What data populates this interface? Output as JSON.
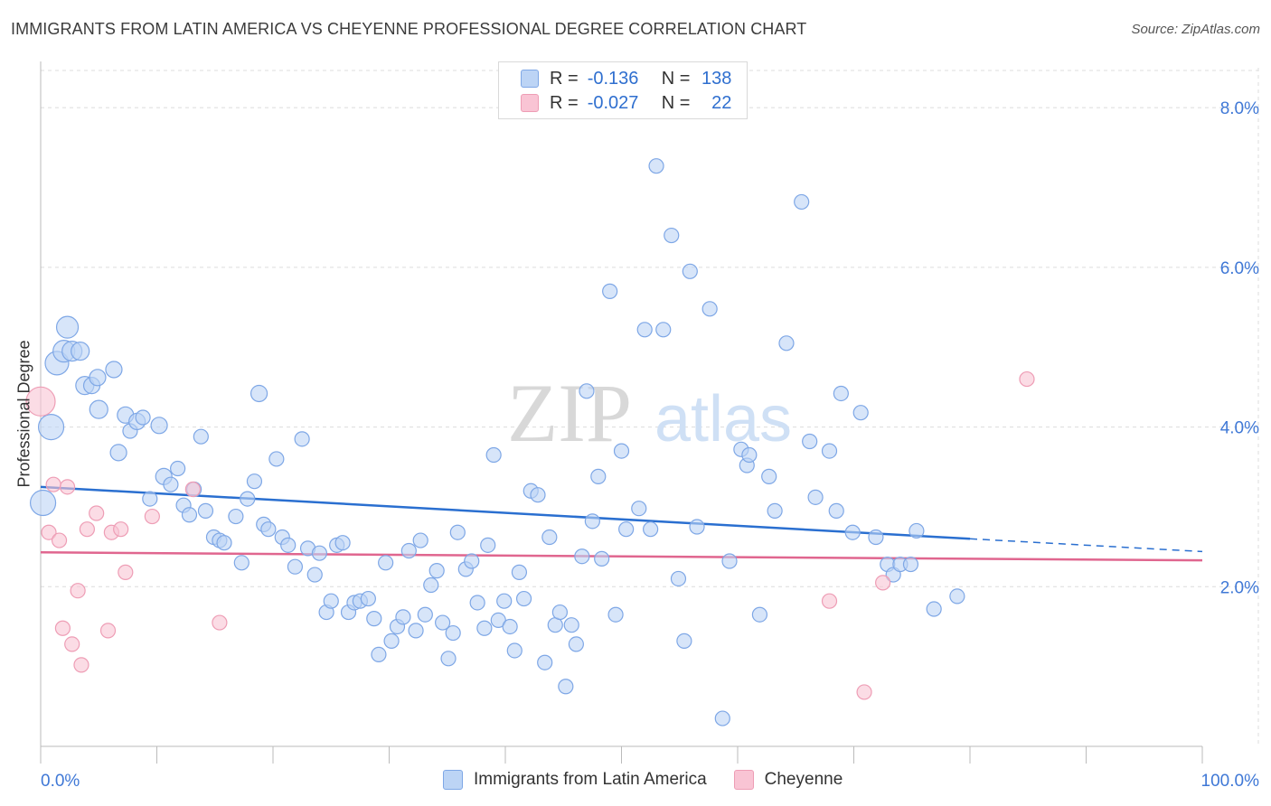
{
  "header": {
    "title": "IMMIGRANTS FROM LATIN AMERICA VS CHEYENNE PROFESSIONAL DEGREE CORRELATION CHART",
    "source": "Source: ZipAtlas.com"
  },
  "watermark": {
    "zip": "ZIP",
    "atlas": "atlas"
  },
  "legend": {
    "r_label": "R =",
    "n_label": "N =",
    "rows": [
      {
        "name": "blue",
        "r": "-0.136",
        "n": "138"
      },
      {
        "name": "pink",
        "r": "-0.027",
        "n": "22"
      }
    ]
  },
  "colors": {
    "blue_fill": "#bcd4f5",
    "blue_stroke": "#7ea7e6",
    "blue_line": "#2a6fd0",
    "pink_fill": "#f9c4d4",
    "pink_stroke": "#ee9db5",
    "pink_line": "#e0668f",
    "axis_label": "#3f78d6",
    "grid": "#dcdcdc"
  },
  "chart_data": {
    "type": "scatter",
    "title": "IMMIGRANTS FROM LATIN AMERICA VS CHEYENNE PROFESSIONAL DEGREE CORRELATION CHART",
    "xlabel": "",
    "ylabel": "Professional Degree",
    "xlim": [
      0,
      100
    ],
    "ylim": [
      0,
      8.5
    ],
    "x_tick_labels": [
      "0.0%",
      "100.0%"
    ],
    "y_ticks": [
      2,
      4,
      6,
      8
    ],
    "y_tick_labels": [
      "2.0%",
      "4.0%",
      "6.0%",
      "8.0%"
    ],
    "grid": true,
    "legend_position": "top-center",
    "series": [
      {
        "name": "Immigrants from Latin America",
        "r": -0.136,
        "n": 138,
        "trend": {
          "x0": 0,
          "y0": 3.25,
          "x1": 80,
          "y1": 2.6,
          "dash_to_x": 100,
          "dash_to_y": 2.44
        },
        "points": [
          [
            0.2,
            3.05,
            14
          ],
          [
            0.9,
            4.0,
            14
          ],
          [
            1.4,
            4.8,
            13
          ],
          [
            2.3,
            5.25,
            12
          ],
          [
            2.0,
            4.95,
            12
          ],
          [
            2.7,
            4.95,
            11
          ],
          [
            3.4,
            4.95,
            10
          ],
          [
            3.8,
            4.52,
            10
          ],
          [
            4.4,
            4.52,
            9
          ],
          [
            4.9,
            4.62,
            9
          ],
          [
            5.0,
            4.22,
            10
          ],
          [
            6.3,
            4.72,
            9
          ],
          [
            6.7,
            3.68,
            9
          ],
          [
            7.3,
            4.15,
            9
          ],
          [
            7.7,
            3.95,
            8
          ],
          [
            8.3,
            4.07,
            9
          ],
          [
            8.8,
            4.12,
            8
          ],
          [
            9.4,
            3.1,
            8
          ],
          [
            10.2,
            4.02,
            9
          ],
          [
            10.6,
            3.38,
            9
          ],
          [
            11.2,
            3.28,
            8
          ],
          [
            11.8,
            3.48,
            8
          ],
          [
            12.3,
            3.02,
            8
          ],
          [
            12.8,
            2.9,
            8
          ],
          [
            13.2,
            3.22,
            8
          ],
          [
            13.8,
            3.88,
            8
          ],
          [
            14.2,
            2.95,
            8
          ],
          [
            14.9,
            2.62,
            8
          ],
          [
            15.4,
            2.58,
            8
          ],
          [
            15.8,
            2.55,
            8
          ],
          [
            16.8,
            2.88,
            8
          ],
          [
            17.3,
            2.3,
            8
          ],
          [
            17.8,
            3.1,
            8
          ],
          [
            18.4,
            3.32,
            8
          ],
          [
            18.8,
            4.42,
            9
          ],
          [
            19.2,
            2.78,
            8
          ],
          [
            19.6,
            2.72,
            8
          ],
          [
            20.3,
            3.6,
            8
          ],
          [
            20.8,
            2.62,
            8
          ],
          [
            21.3,
            2.52,
            8
          ],
          [
            21.9,
            2.25,
            8
          ],
          [
            22.5,
            3.85,
            8
          ],
          [
            23.0,
            2.48,
            8
          ],
          [
            23.6,
            2.15,
            8
          ],
          [
            24.0,
            2.42,
            8
          ],
          [
            24.6,
            1.68,
            8
          ],
          [
            25.0,
            1.82,
            8
          ],
          [
            25.5,
            2.52,
            8
          ],
          [
            26.0,
            2.55,
            8
          ],
          [
            26.5,
            1.68,
            8
          ],
          [
            27.0,
            1.8,
            8
          ],
          [
            27.5,
            1.82,
            8
          ],
          [
            28.2,
            1.85,
            8
          ],
          [
            28.7,
            1.6,
            8
          ],
          [
            29.1,
            1.15,
            8
          ],
          [
            29.7,
            2.3,
            8
          ],
          [
            30.2,
            1.32,
            8
          ],
          [
            30.7,
            1.5,
            8
          ],
          [
            31.2,
            1.62,
            8
          ],
          [
            31.7,
            2.45,
            8
          ],
          [
            32.3,
            1.45,
            8
          ],
          [
            32.7,
            2.58,
            8
          ],
          [
            33.1,
            1.65,
            8
          ],
          [
            33.6,
            2.02,
            8
          ],
          [
            34.1,
            2.2,
            8
          ],
          [
            34.6,
            1.55,
            8
          ],
          [
            35.1,
            1.1,
            8
          ],
          [
            35.5,
            1.42,
            8
          ],
          [
            35.9,
            2.68,
            8
          ],
          [
            36.6,
            2.22,
            8
          ],
          [
            37.1,
            2.32,
            8
          ],
          [
            37.6,
            1.8,
            8
          ],
          [
            38.2,
            1.48,
            8
          ],
          [
            38.5,
            2.52,
            8
          ],
          [
            39.0,
            3.65,
            8
          ],
          [
            39.4,
            1.58,
            8
          ],
          [
            39.9,
            1.82,
            8
          ],
          [
            40.4,
            1.5,
            8
          ],
          [
            40.8,
            1.2,
            8
          ],
          [
            41.2,
            2.18,
            8
          ],
          [
            41.6,
            1.85,
            8
          ],
          [
            42.2,
            3.2,
            8
          ],
          [
            42.8,
            3.15,
            8
          ],
          [
            43.4,
            1.05,
            8
          ],
          [
            43.8,
            2.62,
            8
          ],
          [
            44.3,
            1.52,
            8
          ],
          [
            44.7,
            1.68,
            8
          ],
          [
            45.2,
            0.75,
            8
          ],
          [
            45.7,
            1.52,
            8
          ],
          [
            46.1,
            1.28,
            8
          ],
          [
            46.6,
            2.38,
            8
          ],
          [
            47.0,
            4.45,
            8
          ],
          [
            47.5,
            2.82,
            8
          ],
          [
            48.0,
            3.38,
            8
          ],
          [
            48.3,
            2.35,
            8
          ],
          [
            49.0,
            5.7,
            8
          ],
          [
            49.5,
            1.65,
            8
          ],
          [
            50.0,
            3.7,
            8
          ],
          [
            50.4,
            2.72,
            8
          ],
          [
            51.5,
            2.98,
            8
          ],
          [
            52.0,
            5.22,
            8
          ],
          [
            52.5,
            2.72,
            8
          ],
          [
            53.0,
            7.27,
            8
          ],
          [
            53.6,
            5.22,
            8
          ],
          [
            54.3,
            6.4,
            8
          ],
          [
            54.9,
            2.1,
            8
          ],
          [
            55.4,
            1.32,
            8
          ],
          [
            55.9,
            5.95,
            8
          ],
          [
            56.5,
            2.75,
            8
          ],
          [
            57.6,
            5.48,
            8
          ],
          [
            58.7,
            0.35,
            8
          ],
          [
            59.3,
            2.32,
            8
          ],
          [
            60.3,
            3.72,
            8
          ],
          [
            60.8,
            3.52,
            8
          ],
          [
            61.0,
            3.65,
            8
          ],
          [
            61.9,
            1.65,
            8
          ],
          [
            62.7,
            3.38,
            8
          ],
          [
            63.2,
            2.95,
            8
          ],
          [
            64.2,
            5.05,
            8
          ],
          [
            65.5,
            6.82,
            8
          ],
          [
            66.2,
            3.82,
            8
          ],
          [
            66.7,
            3.12,
            8
          ],
          [
            67.9,
            3.7,
            8
          ],
          [
            68.5,
            2.95,
            8
          ],
          [
            68.9,
            4.42,
            8
          ],
          [
            69.9,
            2.68,
            8
          ],
          [
            70.6,
            4.18,
            8
          ],
          [
            71.9,
            2.62,
            8
          ],
          [
            72.9,
            2.28,
            8
          ],
          [
            73.4,
            2.15,
            8
          ],
          [
            74.0,
            2.28,
            8
          ],
          [
            74.9,
            2.28,
            8
          ],
          [
            75.4,
            2.7,
            8
          ],
          [
            76.9,
            1.72,
            8
          ],
          [
            78.9,
            1.88,
            8
          ]
        ]
      },
      {
        "name": "Cheyenne",
        "r": -0.027,
        "n": 22,
        "trend": {
          "x0": 0,
          "y0": 2.43,
          "x1": 100,
          "y1": 2.33
        },
        "points": [
          [
            0.0,
            4.32,
            16
          ],
          [
            0.7,
            2.68,
            8
          ],
          [
            1.1,
            3.28,
            8
          ],
          [
            1.6,
            2.58,
            8
          ],
          [
            1.9,
            1.48,
            8
          ],
          [
            2.3,
            3.25,
            8
          ],
          [
            2.7,
            1.28,
            8
          ],
          [
            3.2,
            1.95,
            8
          ],
          [
            3.5,
            1.02,
            8
          ],
          [
            4.0,
            2.72,
            8
          ],
          [
            4.8,
            2.92,
            8
          ],
          [
            5.8,
            1.45,
            8
          ],
          [
            6.1,
            2.68,
            8
          ],
          [
            6.9,
            2.72,
            8
          ],
          [
            7.3,
            2.18,
            8
          ],
          [
            9.6,
            2.88,
            8
          ],
          [
            13.1,
            3.22,
            8
          ],
          [
            15.4,
            1.55,
            8
          ],
          [
            67.9,
            1.82,
            8
          ],
          [
            70.9,
            0.68,
            8
          ],
          [
            72.5,
            2.05,
            8
          ],
          [
            84.9,
            4.6,
            8
          ]
        ]
      }
    ]
  },
  "bottom_legend": {
    "items": [
      {
        "label": "Immigrants from Latin America"
      },
      {
        "label": "Cheyenne"
      }
    ]
  }
}
